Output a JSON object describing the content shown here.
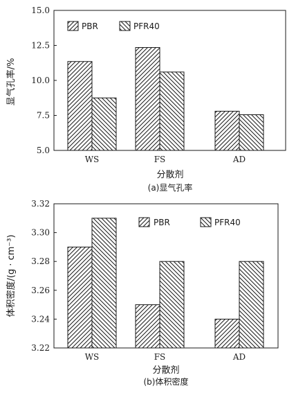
{
  "chart_data": [
    {
      "type": "bar",
      "categories": [
        "WS",
        "FS",
        "AD"
      ],
      "series": [
        {
          "name": "PBR",
          "values": [
            11.35,
            12.35,
            7.8
          ]
        },
        {
          "name": "PFR40",
          "values": [
            8.75,
            10.6,
            7.55
          ]
        }
      ],
      "xlabel": "分散剂",
      "ylabel": "显气孔率/%",
      "caption": "(a)显气孔率",
      "ylim": [
        5.0,
        15.0
      ],
      "yticks": [
        "5.0",
        "7.5",
        "10.0",
        "12.5",
        "15.0"
      ],
      "legend": "top, inside",
      "patterns": {
        "PBR": "hatch-forward",
        "PFR40": "hatch-backward"
      }
    },
    {
      "type": "bar",
      "categories": [
        "WS",
        "FS",
        "AD"
      ],
      "series": [
        {
          "name": "PBR",
          "values": [
            3.29,
            3.25,
            3.24
          ]
        },
        {
          "name": "PFR40",
          "values": [
            3.31,
            3.28,
            3.28
          ]
        }
      ],
      "xlabel": "分散剂",
      "ylabel": "体积密度/(g · cm⁻³)",
      "caption": "(b)体积密度",
      "ylim": [
        3.22,
        3.32
      ],
      "yticks": [
        "3.22",
        "3.24",
        "3.26",
        "3.28",
        "3.30",
        "3.32"
      ],
      "legend": "top, inside",
      "patterns": {
        "PBR": "hatch-forward",
        "PFR40": "hatch-backward"
      }
    }
  ]
}
